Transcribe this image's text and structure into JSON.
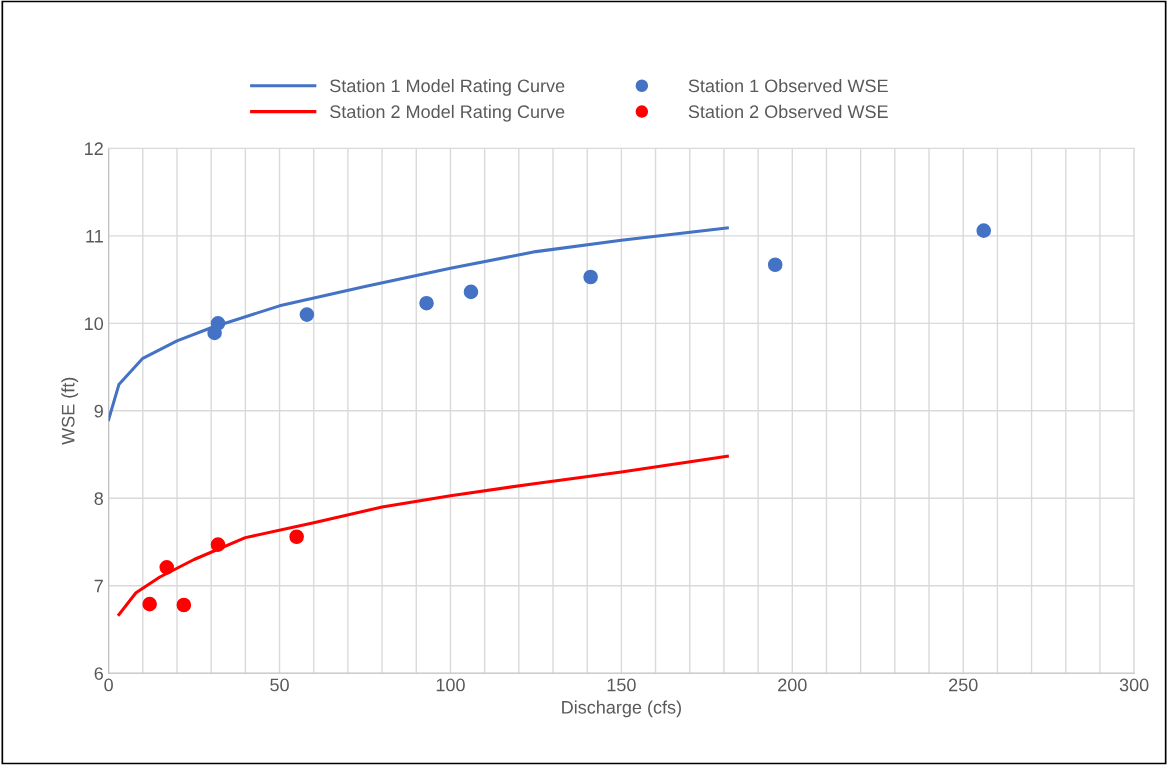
{
  "chart_data": {
    "type": "line",
    "xlabel": "Discharge (cfs)",
    "ylabel": "WSE (ft)",
    "xlim": [
      0,
      300
    ],
    "ylim": [
      6,
      12
    ],
    "xticks": [
      0,
      {
        "value": 10,
        "label": null
      },
      {
        "value": 20,
        "label": null
      },
      {
        "value": 30,
        "label": null
      },
      {
        "value": 40,
        "label": null
      },
      50,
      {
        "value": 60,
        "label": null
      },
      {
        "value": 70,
        "label": null
      },
      {
        "value": 80,
        "label": null
      },
      {
        "value": 90,
        "label": null
      },
      100,
      {
        "value": 110,
        "label": null
      },
      {
        "value": 120,
        "label": null
      },
      {
        "value": 130,
        "label": null
      },
      {
        "value": 140,
        "label": null
      },
      150,
      {
        "value": 160,
        "label": null
      },
      {
        "value": 170,
        "label": null
      },
      {
        "value": 180,
        "label": null
      },
      {
        "value": 190,
        "label": null
      },
      200,
      {
        "value": 210,
        "label": null
      },
      {
        "value": 220,
        "label": null
      },
      {
        "value": 230,
        "label": null
      },
      {
        "value": 240,
        "label": null
      },
      250,
      {
        "value": 260,
        "label": null
      },
      {
        "value": 270,
        "label": null
      },
      {
        "value": 280,
        "label": null
      },
      {
        "value": 290,
        "label": null
      },
      300
    ],
    "yticks": [
      6,
      7,
      8,
      9,
      10,
      11,
      12
    ],
    "grid": true,
    "legend": "top",
    "series": [
      {
        "name": "Station 1 Model Rating Curve",
        "color": "#4472c4",
        "marker": "none",
        "x": [
          0,
          3,
          10,
          20,
          30,
          50,
          75,
          100,
          125,
          150,
          181
        ],
        "values": [
          8.9,
          9.3,
          9.6,
          9.8,
          9.95,
          10.2,
          10.42,
          10.63,
          10.82,
          10.95,
          11.09
        ]
      },
      {
        "name": "Station 1 Observed WSE",
        "type": "scatter",
        "color": "#4472c4",
        "marker": "circle",
        "x": [
          31,
          32,
          58,
          93,
          106,
          141,
          195,
          256
        ],
        "values": [
          9.89,
          10.0,
          10.1,
          10.23,
          10.36,
          10.53,
          10.67,
          11.06
        ]
      },
      {
        "name": "Station 2 Model Rating Curve",
        "color": "#ff0000",
        "marker": "none",
        "x": [
          3,
          8,
          15,
          25,
          40,
          60,
          80,
          100,
          125,
          150,
          181
        ],
        "values": [
          6.67,
          6.92,
          7.1,
          7.3,
          7.55,
          7.72,
          7.9,
          8.03,
          8.17,
          8.3,
          8.48
        ]
      },
      {
        "name": "Station 2 Observed WSE",
        "type": "scatter",
        "color": "#ff0000",
        "marker": "circle",
        "x": [
          12,
          17,
          22,
          32,
          55
        ],
        "values": [
          6.79,
          7.21,
          6.78,
          7.47,
          7.56
        ]
      }
    ]
  }
}
